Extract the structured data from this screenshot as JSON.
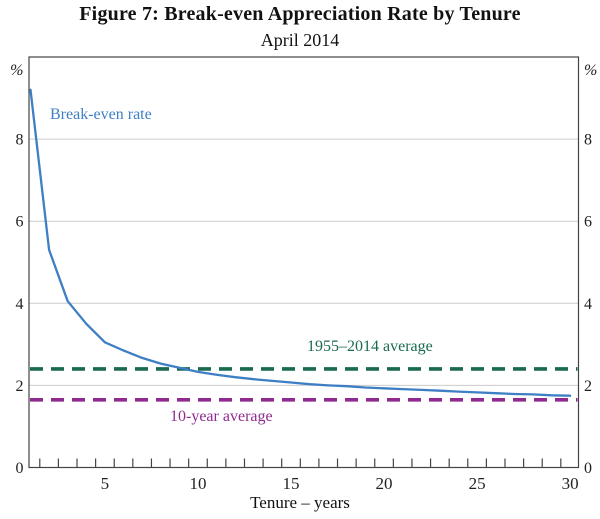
{
  "header": {
    "title": "Figure 7: Break-even Appreciation Rate by Tenure",
    "subtitle": "April 2014"
  },
  "chart_data": {
    "type": "line",
    "title": "Figure 7: Break-even Appreciation Rate by Tenure",
    "subtitle": "April 2014",
    "xlabel": "Tenure – years",
    "ylabel_left": "%",
    "ylabel_right": "%",
    "xlim": [
      0.92,
      30.45
    ],
    "ylim": [
      0,
      10
    ],
    "y_ticks": [
      0,
      2,
      4,
      6,
      8
    ],
    "x_ticks_labeled": [
      5,
      10,
      15,
      20,
      25,
      30
    ],
    "x_minor_tick_start": 1.5,
    "x_minor_tick_step": 1,
    "grid": "horizontal-light-gray",
    "x": [
      1,
      2,
      3,
      4,
      5,
      6,
      7,
      8,
      9,
      10,
      11,
      12,
      13,
      14,
      15,
      16,
      17,
      18,
      19,
      20,
      21,
      22,
      23,
      24,
      25,
      26,
      27,
      28,
      29,
      30
    ],
    "series": [
      {
        "name": "Break-even rate",
        "type": "line",
        "style": "solid",
        "color": "#3e7fc4",
        "values": [
          9.2,
          5.3,
          4.05,
          3.5,
          3.05,
          2.85,
          2.67,
          2.53,
          2.43,
          2.33,
          2.26,
          2.2,
          2.15,
          2.11,
          2.07,
          2.03,
          2.0,
          1.98,
          1.95,
          1.93,
          1.91,
          1.89,
          1.87,
          1.85,
          1.83,
          1.81,
          1.79,
          1.78,
          1.76,
          1.75
        ]
      },
      {
        "name": "1955–2014 average",
        "type": "hline",
        "style": "dashed",
        "color": "#1a6a4f",
        "value": 2.4
      },
      {
        "name": "10-year average",
        "type": "hline",
        "style": "dashed",
        "color": "#8f2b8f",
        "value": 1.65
      }
    ],
    "legend_position": "inline-annotations"
  },
  "colors": {
    "axis": "#444444",
    "gridline": "#cccccc",
    "tick_text": "#222222",
    "background": "#ffffff"
  }
}
